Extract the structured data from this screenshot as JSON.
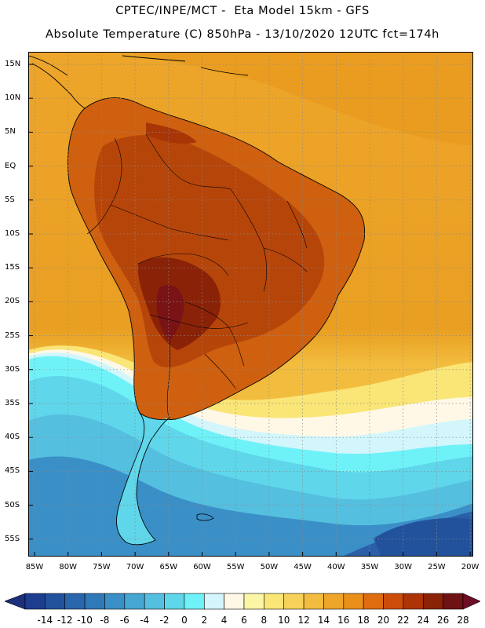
{
  "header": {
    "line1": "CPTEC/INPE/MCT -  Eta Model 15km - GFS",
    "line2": "Absolute Temperature (C) 850hPa - 13/10/2020 12UTC fct=174h"
  },
  "axes": {
    "lat_labels": [
      "15N",
      "10N",
      "5N",
      "EQ",
      "5S",
      "10S",
      "15S",
      "20S",
      "25S",
      "30S",
      "35S",
      "40S",
      "45S",
      "50S",
      "55S"
    ],
    "lon_labels": [
      "85W",
      "80W",
      "75W",
      "70W",
      "65W",
      "60W",
      "55W",
      "50W",
      "45W",
      "40W",
      "35W",
      "30W",
      "25W",
      "20W"
    ]
  },
  "colorbar": {
    "labels": [
      "-14",
      "-12",
      "-10",
      "-8",
      "-6",
      "-4",
      "-2",
      "0",
      "2",
      "4",
      "6",
      "8",
      "10",
      "12",
      "14",
      "16",
      "18",
      "20",
      "22",
      "24",
      "26",
      "28"
    ],
    "colors": [
      "#1d3e8e",
      "#23529c",
      "#2a66ac",
      "#3079b8",
      "#3a8fc6",
      "#46a6d2",
      "#55bfe0",
      "#5fd6ea",
      "#6ff2f7",
      "#d2f6fb",
      "#fff8e6",
      "#fbf6a6",
      "#f9e676",
      "#f7d25a",
      "#f2bd3e",
      "#eda52a",
      "#e98f1a",
      "#df6c0f",
      "#cc4d09",
      "#ad3407",
      "#8a2207",
      "#6e1215"
    ],
    "arrow_left_color": "#1b2f7a",
    "arrow_right_color": "#6e0d24"
  },
  "colors": {
    "ocean_warm": "#e9a41f",
    "land_hot": "#c65b0c",
    "land_hottest": "#7a1316",
    "ocean_cold": "#3aa6d6",
    "ocean_deep": "#2a5fa8"
  }
}
